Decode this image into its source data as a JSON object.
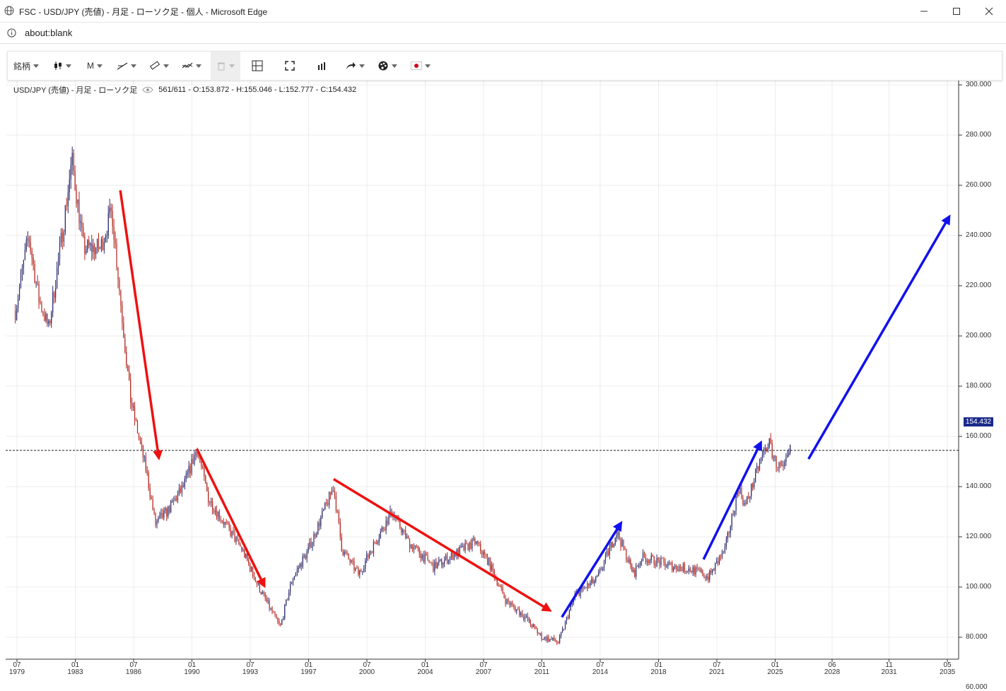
{
  "window": {
    "title": "FSC - USD/JPY (売値) - 月足 - ローソク足 - 個人 - Microsoft Edge",
    "address": "about:blank",
    "buttons": {
      "minimize": "—",
      "maximize": "☐",
      "close": "✕"
    }
  },
  "toolbar": {
    "symbol_label": "銘柄",
    "timeframe_label": "M",
    "icons": [
      "candlestick-icon",
      "trendline-icon",
      "ruler-icon",
      "indicator-icon",
      "trash-icon",
      "layout-icon",
      "fullscreen-icon",
      "volume-icon",
      "share-icon",
      "palette-icon",
      "flag-icon"
    ]
  },
  "legend": {
    "title": "USD/JPY (売値) - 月足 - ローソク足",
    "stats": "561/611 - O:153.872 - H:155.046 - L:152.777 - C:154.432"
  },
  "current_price": "154.432",
  "chart_data": {
    "type": "candlestick",
    "title": "USD/JPY (売値) - 月足 - ローソク足",
    "ylim": [
      55,
      305
    ],
    "y_ticks": [
      "300.000",
      "280.000",
      "260.000",
      "240.000",
      "220.000",
      "200.000",
      "180.000",
      "160.000",
      "140.000",
      "120.000",
      "100.000",
      "80.000",
      "60.000"
    ],
    "x_ticks": [
      {
        "month": "07",
        "year": "1979"
      },
      {
        "month": "01",
        "year": "1983"
      },
      {
        "month": "07",
        "year": "1986"
      },
      {
        "month": "01",
        "year": "1990"
      },
      {
        "month": "07",
        "year": "1993"
      },
      {
        "month": "01",
        "year": "1997"
      },
      {
        "month": "07",
        "year": "2000"
      },
      {
        "month": "01",
        "year": "2004"
      },
      {
        "month": "07",
        "year": "2007"
      },
      {
        "month": "01",
        "year": "2011"
      },
      {
        "month": "07",
        "year": "2014"
      },
      {
        "month": "01",
        "year": "2018"
      },
      {
        "month": "07",
        "year": "2021"
      },
      {
        "month": "01",
        "year": "2025"
      },
      {
        "month": "06",
        "year": "2028"
      },
      {
        "month": "11",
        "year": "2031"
      },
      {
        "month": "05",
        "year": "2035"
      }
    ],
    "close_path": [
      {
        "year": 1979.4,
        "value": 210
      },
      {
        "year": 1980.2,
        "value": 240
      },
      {
        "year": 1980.8,
        "value": 215
      },
      {
        "year": 1981.4,
        "value": 203
      },
      {
        "year": 1982.2,
        "value": 240
      },
      {
        "year": 1982.8,
        "value": 270
      },
      {
        "year": 1983.5,
        "value": 235
      },
      {
        "year": 1984.5,
        "value": 235
      },
      {
        "year": 1985.2,
        "value": 250
      },
      {
        "year": 1985.7,
        "value": 215
      },
      {
        "year": 1986.3,
        "value": 175
      },
      {
        "year": 1986.8,
        "value": 160
      },
      {
        "year": 1987.3,
        "value": 145
      },
      {
        "year": 1987.8,
        "value": 125
      },
      {
        "year": 1988.5,
        "value": 130
      },
      {
        "year": 1989.5,
        "value": 140
      },
      {
        "year": 1990.3,
        "value": 155
      },
      {
        "year": 1991.0,
        "value": 135
      },
      {
        "year": 1992.0,
        "value": 125
      },
      {
        "year": 1993.0,
        "value": 115
      },
      {
        "year": 1994.0,
        "value": 100
      },
      {
        "year": 1995.3,
        "value": 84
      },
      {
        "year": 1996.0,
        "value": 103
      },
      {
        "year": 1997.0,
        "value": 115
      },
      {
        "year": 1998.5,
        "value": 140
      },
      {
        "year": 1999.0,
        "value": 115
      },
      {
        "year": 2000.0,
        "value": 105
      },
      {
        "year": 2001.0,
        "value": 118
      },
      {
        "year": 2002.0,
        "value": 130
      },
      {
        "year": 2003.0,
        "value": 118
      },
      {
        "year": 2004.5,
        "value": 108
      },
      {
        "year": 2005.5,
        "value": 112
      },
      {
        "year": 2007.0,
        "value": 118
      },
      {
        "year": 2007.8,
        "value": 110
      },
      {
        "year": 2008.8,
        "value": 95
      },
      {
        "year": 2010.0,
        "value": 88
      },
      {
        "year": 2011.0,
        "value": 80
      },
      {
        "year": 2012.0,
        "value": 78
      },
      {
        "year": 2013.0,
        "value": 97
      },
      {
        "year": 2014.3,
        "value": 103
      },
      {
        "year": 2015.5,
        "value": 122
      },
      {
        "year": 2016.5,
        "value": 105
      },
      {
        "year": 2017.0,
        "value": 112
      },
      {
        "year": 2018.0,
        "value": 110
      },
      {
        "year": 2019.0,
        "value": 108
      },
      {
        "year": 2020.0,
        "value": 107
      },
      {
        "year": 2021.0,
        "value": 104
      },
      {
        "year": 2022.0,
        "value": 115
      },
      {
        "year": 2022.8,
        "value": 140
      },
      {
        "year": 2023.2,
        "value": 132
      },
      {
        "year": 2024.0,
        "value": 148
      },
      {
        "year": 2024.6,
        "value": 158
      },
      {
        "year": 2025.0,
        "value": 150
      },
      {
        "year": 2025.5,
        "value": 146
      },
      {
        "year": 2025.9,
        "value": 154.432
      }
    ],
    "reference_line": 154.432
  }
}
